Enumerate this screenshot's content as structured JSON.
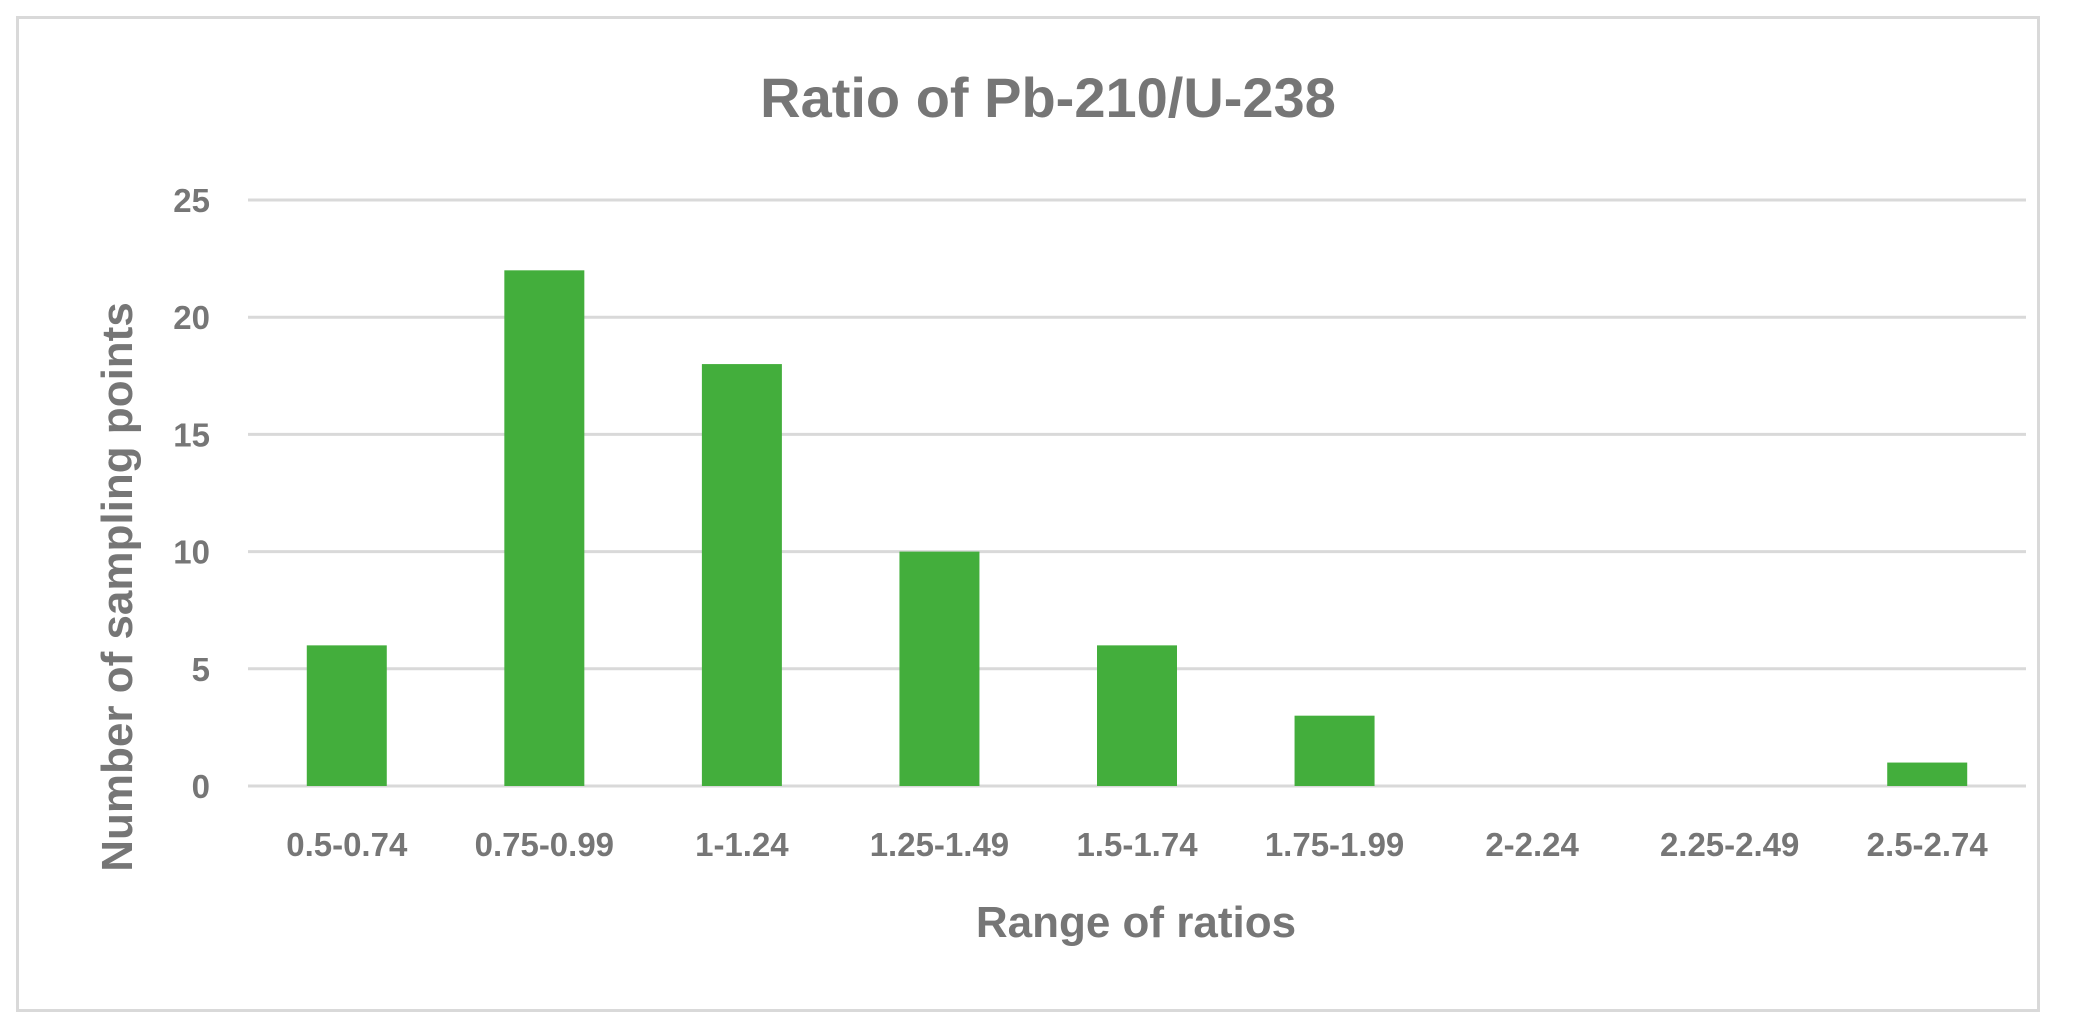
{
  "chart_data": {
    "type": "bar",
    "title": "Ratio of Pb-210/U-238",
    "xlabel": "Range of ratios",
    "ylabel": "Number of sampling points",
    "categories": [
      "0.5-0.74",
      "0.75-0.99",
      "1-1.24",
      "1.25-1.49",
      "1.5-1.74",
      "1.75-1.99",
      "2-2.24",
      "2.25-2.49",
      "2.5-2.74"
    ],
    "values": [
      6,
      22,
      18,
      10,
      6,
      3,
      0,
      0,
      1
    ],
    "ylim": [
      0,
      25
    ],
    "yticks": [
      "0",
      "5",
      "10",
      "15",
      "20",
      "25"
    ],
    "grid": true,
    "legend": "none",
    "colors": {
      "bar": "#43ae3c",
      "grid": "#d9d9d9",
      "text": "#767676",
      "border": "#d9d9d9"
    }
  }
}
